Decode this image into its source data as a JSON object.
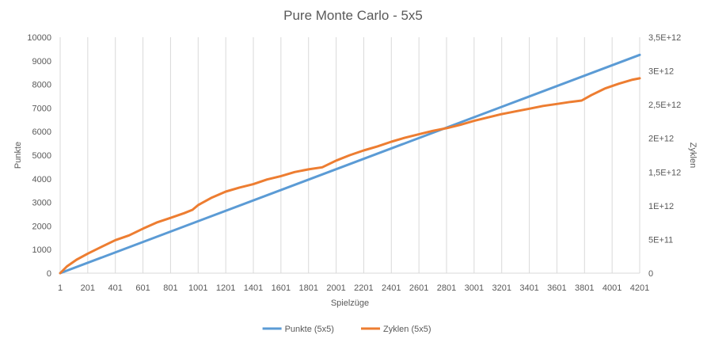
{
  "chart_data": {
    "type": "line",
    "title": "Pure Monte Carlo - 5x5",
    "xlabel": "Spielzüge",
    "ylabel": "Punkte",
    "y2label": "Zyklen",
    "x_ticks": [
      "1",
      "201",
      "401",
      "601",
      "801",
      "1001",
      "1201",
      "1401",
      "1601",
      "1801",
      "2001",
      "2201",
      "2401",
      "2601",
      "2801",
      "3001",
      "3201",
      "3401",
      "3601",
      "3801",
      "4001",
      "4201"
    ],
    "x_range": [
      1,
      4201
    ],
    "ylim": [
      0,
      10000
    ],
    "y_ticks": [
      "0",
      "1000",
      "2000",
      "3000",
      "4000",
      "5000",
      "6000",
      "7000",
      "8000",
      "9000",
      "10000"
    ],
    "y2lim": [
      0,
      3500000000000
    ],
    "y2_ticks": [
      "0",
      "5E+11",
      "1E+12",
      "1,5E+12",
      "2E+12",
      "2,5E+12",
      "3E+12",
      "3,5E+12"
    ],
    "grid": "vertical",
    "legend_position": "bottom",
    "series": [
      {
        "name": "Punkte (5x5)",
        "axis": "left",
        "color": "#5b9bd5",
        "x": [
          1,
          4201
        ],
        "values": [
          0,
          9250
        ]
      },
      {
        "name": "Zyklen (5x5)",
        "axis": "right",
        "color": "#ed7d31",
        "x": [
          1,
          50,
          120,
          201,
          300,
          401,
          500,
          601,
          700,
          801,
          900,
          960,
          1001,
          1100,
          1201,
          1300,
          1401,
          1500,
          1601,
          1700,
          1801,
          1900,
          2001,
          2100,
          2201,
          2300,
          2401,
          2500,
          2601,
          2700,
          2801,
          2900,
          3001,
          3101,
          3201,
          3301,
          3401,
          3501,
          3601,
          3700,
          3780,
          3850,
          3950,
          4050,
          4150,
          4201
        ],
        "values": [
          0,
          100000000000,
          200000000000,
          290000000000,
          390000000000,
          490000000000,
          560000000000,
          660000000000,
          750000000000,
          820000000000,
          890000000000,
          940000000000,
          1010000000000,
          1120000000000,
          1210000000000,
          1270000000000,
          1320000000000,
          1390000000000,
          1440000000000,
          1500000000000,
          1540000000000,
          1570000000000,
          1670000000000,
          1750000000000,
          1820000000000,
          1880000000000,
          1950000000000,
          2010000000000,
          2060000000000,
          2110000000000,
          2150000000000,
          2200000000000,
          2260000000000,
          2310000000000,
          2360000000000,
          2400000000000,
          2440000000000,
          2480000000000,
          2510000000000,
          2540000000000,
          2560000000000,
          2640000000000,
          2740000000000,
          2810000000000,
          2870000000000,
          2890000000000
        ]
      }
    ]
  }
}
